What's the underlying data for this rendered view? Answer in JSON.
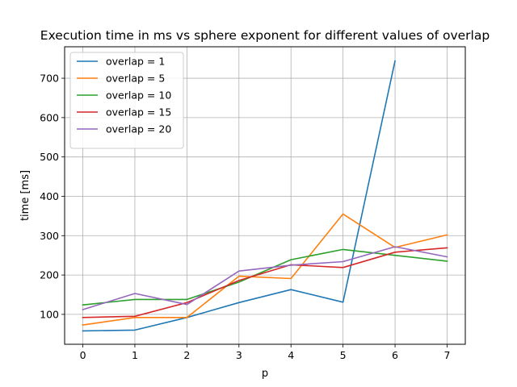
{
  "chart_data": {
    "type": "line",
    "title": "Execution time in ms vs sphere exponent for different values of overlap",
    "xlabel": "p",
    "ylabel": "time [ms]",
    "x": [
      0,
      1,
      2,
      3,
      4,
      5,
      6,
      7
    ],
    "xlim": [
      -0.35,
      7.35
    ],
    "ylim": [
      24,
      780
    ],
    "xticks": [
      0,
      1,
      2,
      3,
      4,
      5,
      6,
      7
    ],
    "yticks": [
      100,
      200,
      300,
      400,
      500,
      600,
      700
    ],
    "grid": true,
    "legend_position": "top-left",
    "series": [
      {
        "name": "overlap = 1",
        "color": "#1f77b4",
        "values": [
          58,
          60,
          92,
          130,
          163,
          131,
          744,
          null
        ]
      },
      {
        "name": "overlap = 5",
        "color": "#ff7f0e",
        "values": [
          73,
          92,
          92,
          197,
          191,
          355,
          270,
          302
        ]
      },
      {
        "name": "overlap = 10",
        "color": "#2ca02c",
        "values": [
          124,
          138,
          138,
          182,
          239,
          265,
          250,
          235
        ]
      },
      {
        "name": "overlap = 15",
        "color": "#d62728",
        "values": [
          92,
          95,
          130,
          186,
          226,
          219,
          258,
          269
        ]
      },
      {
        "name": "overlap = 20",
        "color": "#9467bd",
        "values": [
          112,
          153,
          125,
          210,
          225,
          234,
          272,
          246
        ]
      }
    ]
  }
}
